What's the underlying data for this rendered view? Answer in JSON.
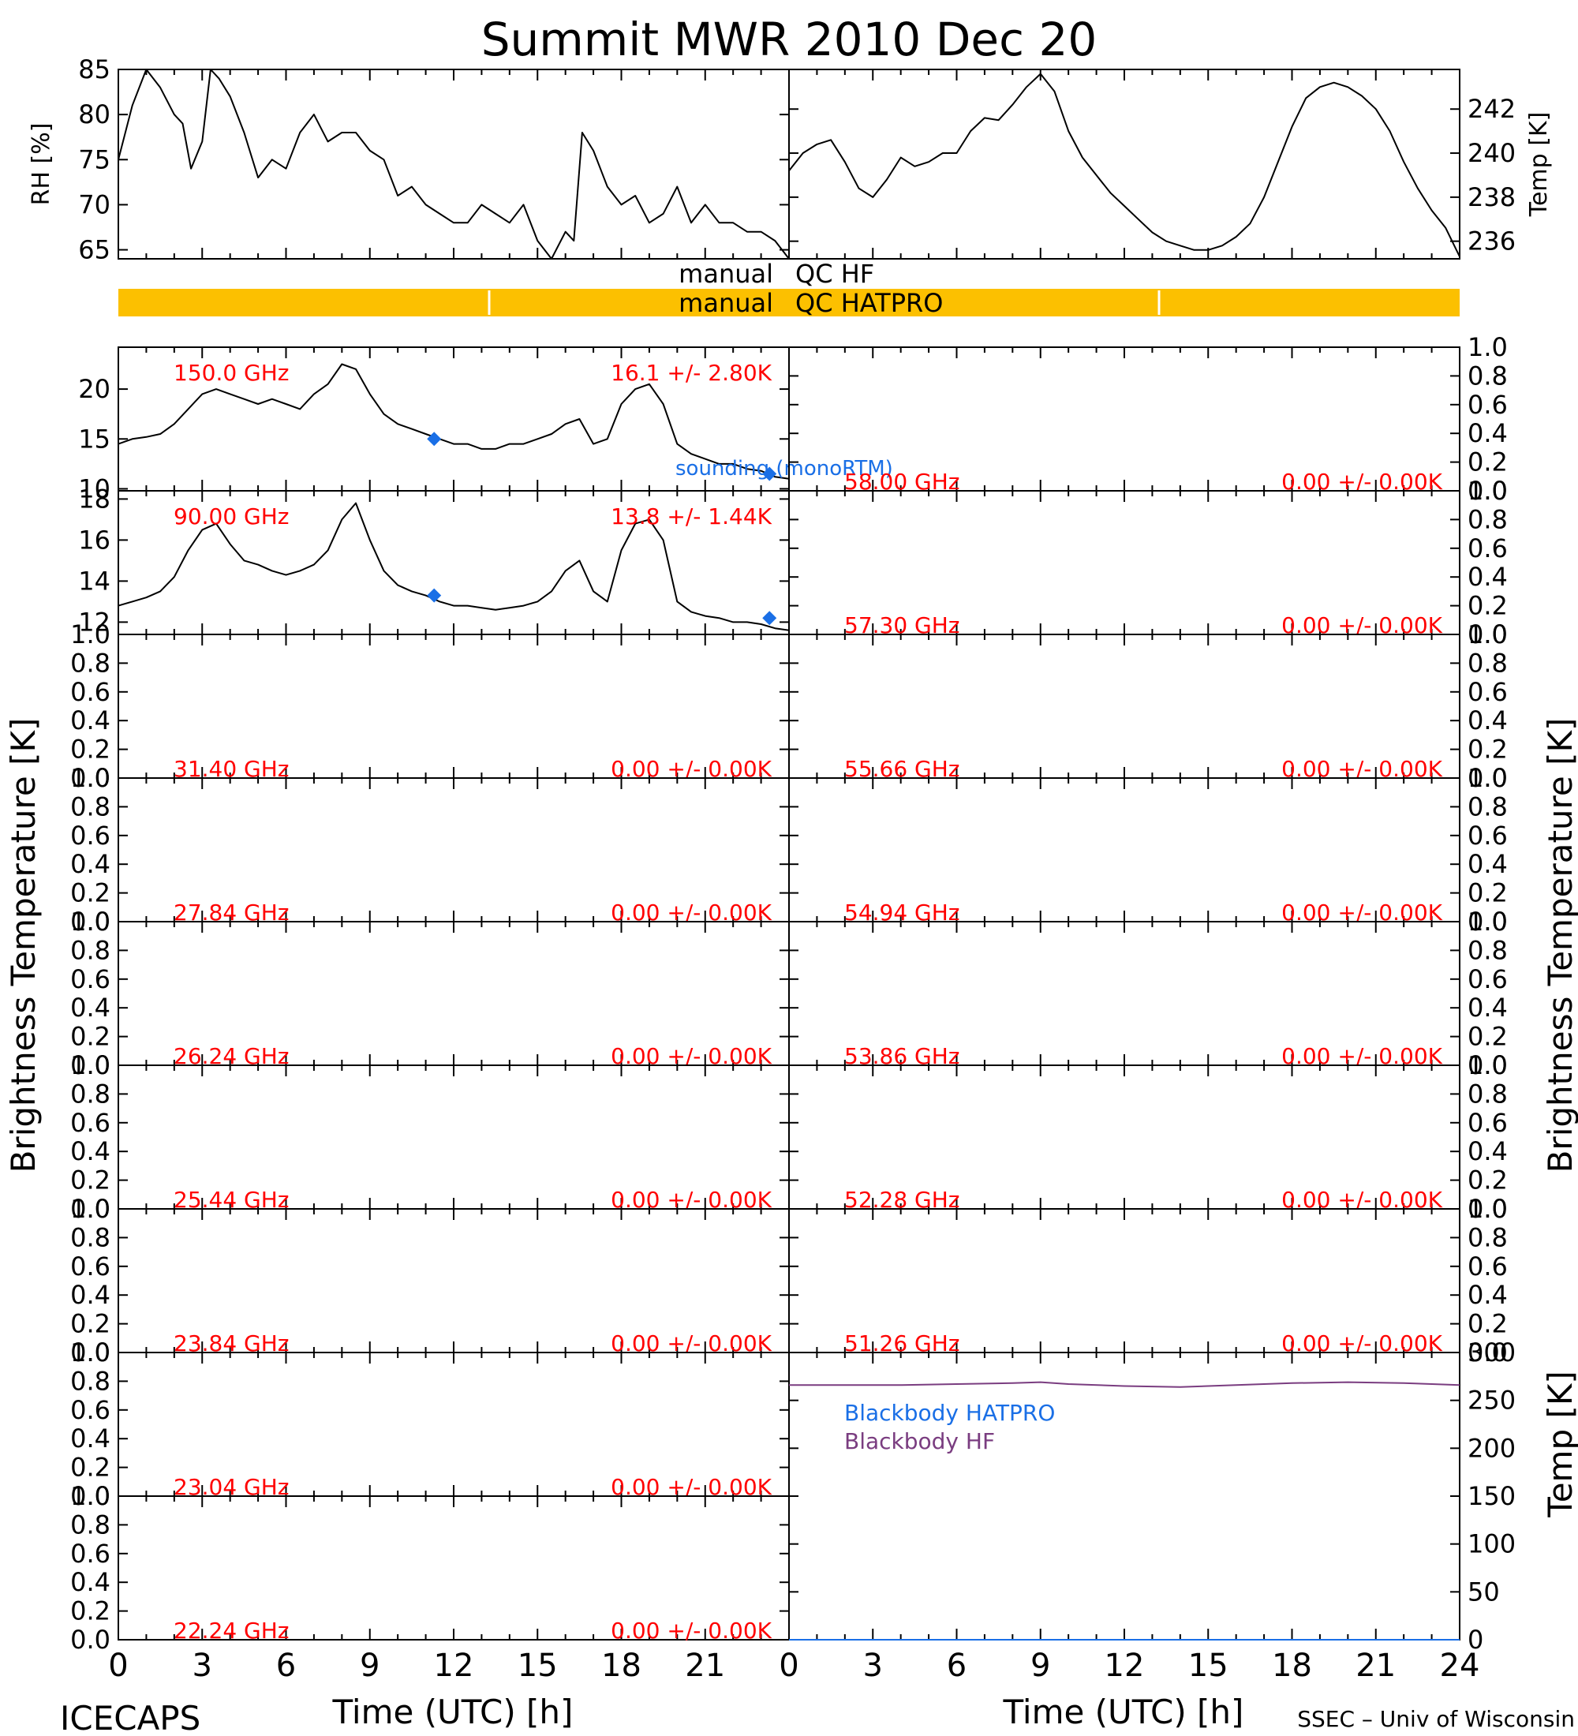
{
  "title": "Summit MWR 2010 Dec 20",
  "footer": {
    "left": "ICECAPS",
    "right": "SSEC – Univ of Wisconsin",
    "xlabel_left": "Time (UTC) [h]",
    "xlabel_right": "Time (UTC) [h]"
  },
  "side_labels": {
    "left": "Brightness Temperature [K]",
    "right": "Brightness Temperature [K]",
    "bb_right": "Temp [K]"
  },
  "colors": {
    "axis": "#000000",
    "freq_label": "#ff0000",
    "sounding": "#1a6fe6",
    "qc_bar": "#fcc000",
    "bb_hf": "#7a3d80",
    "bb_hatpro": "#1a6fe6"
  },
  "qc": {
    "hf_label_left": "manual",
    "hf_label_right": "QC HF",
    "hatpro_label_left": "manual",
    "hatpro_label_right": "QC HATPRO"
  },
  "chart_data": [
    {
      "id": "rh",
      "type": "line",
      "ylabel": "RH [%]",
      "xlim": [
        0,
        24
      ],
      "ylim": [
        64,
        85
      ],
      "yticks": [
        65,
        70,
        75,
        80,
        85
      ],
      "x": [
        0,
        0.5,
        1,
        1.5,
        2,
        2.3,
        2.6,
        3,
        3.3,
        3.6,
        4,
        4.5,
        5,
        5.5,
        6,
        6.5,
        7,
        7.5,
        8,
        8.5,
        9,
        9.5,
        10,
        10.5,
        11,
        11.5,
        12,
        12.5,
        13,
        13.5,
        14,
        14.5,
        15,
        15.5,
        16,
        16.3,
        16.6,
        17,
        17.5,
        18,
        18.5,
        19,
        19.5,
        20,
        20.5,
        21,
        21.5,
        22,
        22.5,
        23,
        23.5,
        24
      ],
      "y": [
        75,
        81,
        85,
        83,
        80,
        79,
        74,
        77,
        85,
        84,
        82,
        78,
        73,
        75,
        74,
        78,
        80,
        77,
        78,
        78,
        76,
        75,
        71,
        72,
        70,
        69,
        68,
        68,
        70,
        69,
        68,
        70,
        66,
        64,
        67,
        66,
        78,
        76,
        72,
        70,
        71,
        68,
        69,
        72,
        68,
        70,
        68,
        68,
        67,
        67,
        66,
        64
      ]
    },
    {
      "id": "temp",
      "type": "line",
      "ylabel": "Temp [K]",
      "xlim": [
        0,
        24
      ],
      "ylim": [
        235.2,
        243.8
      ],
      "yticks": [
        236,
        238,
        240,
        242
      ],
      "x": [
        0,
        0.5,
        1,
        1.5,
        2,
        2.5,
        3,
        3.5,
        4,
        4.5,
        5,
        5.5,
        6,
        6.5,
        7,
        7.5,
        8,
        8.5,
        9,
        9.5,
        10,
        10.5,
        11,
        11.5,
        12,
        12.5,
        13,
        13.5,
        14,
        14.5,
        15,
        15.5,
        16,
        16.5,
        17,
        17.5,
        18,
        18.5,
        19,
        19.5,
        20,
        20.5,
        21,
        21.5,
        22,
        22.5,
        23,
        23.5,
        24
      ],
      "y": [
        239.2,
        240.0,
        240.4,
        240.6,
        239.6,
        238.4,
        238.0,
        238.8,
        239.8,
        239.4,
        239.6,
        240.0,
        240.0,
        241.0,
        241.6,
        241.5,
        242.2,
        243.0,
        243.6,
        242.8,
        241.0,
        239.8,
        239.0,
        238.2,
        237.6,
        237.0,
        236.4,
        236.0,
        235.8,
        235.6,
        235.6,
        235.8,
        236.2,
        236.8,
        238.0,
        239.6,
        241.2,
        242.5,
        243.0,
        243.2,
        243.0,
        242.6,
        242.0,
        241.0,
        239.6,
        238.4,
        237.4,
        236.6,
        235.3
      ]
    },
    {
      "id": "bt150",
      "type": "line",
      "column": "left",
      "freq_label": "150.0 GHz",
      "stat_label": "16.1 +/-  2.80K",
      "ylim": [
        9.8,
        24.2
      ],
      "yticks": [
        10,
        15,
        20
      ],
      "x": [
        0,
        0.5,
        1,
        1.5,
        2,
        2.5,
        3,
        3.5,
        4,
        4.5,
        5,
        5.5,
        6,
        6.5,
        7,
        7.5,
        8,
        8.5,
        9,
        9.5,
        10,
        10.5,
        11,
        11.5,
        12,
        12.5,
        13,
        13.5,
        14,
        14.5,
        15,
        15.5,
        16,
        16.5,
        17,
        17.5,
        18,
        18.5,
        19,
        19.5,
        20,
        20.5,
        21,
        21.5,
        22,
        22.5,
        23,
        23.5,
        24
      ],
      "y": [
        14.5,
        15.0,
        15.2,
        15.5,
        16.5,
        18.0,
        19.5,
        20.0,
        19.5,
        19.0,
        18.5,
        19.0,
        18.5,
        18.0,
        19.5,
        20.5,
        22.5,
        22.0,
        19.5,
        17.5,
        16.5,
        16.0,
        15.5,
        15.0,
        14.5,
        14.5,
        14.0,
        14.0,
        14.5,
        14.5,
        15.0,
        15.5,
        16.5,
        17.0,
        14.5,
        15.0,
        18.5,
        20.0,
        20.5,
        18.5,
        14.5,
        13.5,
        13.0,
        12.5,
        12.5,
        12.0,
        11.8,
        11.2,
        11.0
      ],
      "sounding": {
        "label": "sounding (monoRTM)",
        "x": [
          11.3,
          23.3
        ],
        "y": [
          15.0,
          11.5
        ]
      }
    },
    {
      "id": "bt90",
      "type": "line",
      "column": "left",
      "freq_label": "90.00 GHz",
      "stat_label": "13.8 +/-  1.44K",
      "ylim": [
        11.4,
        18.4
      ],
      "yticks": [
        12,
        14,
        16,
        18
      ],
      "x": [
        0,
        0.5,
        1,
        1.5,
        2,
        2.5,
        3,
        3.5,
        4,
        4.5,
        5,
        5.5,
        6,
        6.5,
        7,
        7.5,
        8,
        8.5,
        9,
        9.5,
        10,
        10.5,
        11,
        11.5,
        12,
        12.5,
        13,
        13.5,
        14,
        14.5,
        15,
        15.5,
        16,
        16.5,
        17,
        17.5,
        18,
        18.5,
        19,
        19.5,
        20,
        20.5,
        21,
        21.5,
        22,
        22.5,
        23,
        23.5,
        24
      ],
      "y": [
        12.8,
        13.0,
        13.2,
        13.5,
        14.2,
        15.5,
        16.5,
        16.8,
        15.8,
        15.0,
        14.8,
        14.5,
        14.3,
        14.5,
        14.8,
        15.5,
        17.0,
        17.8,
        16.0,
        14.5,
        13.8,
        13.5,
        13.3,
        13.0,
        12.8,
        12.8,
        12.7,
        12.6,
        12.7,
        12.8,
        13.0,
        13.5,
        14.5,
        15.0,
        13.5,
        13.0,
        15.5,
        16.8,
        17.0,
        16.0,
        13.0,
        12.5,
        12.3,
        12.2,
        12.0,
        12.0,
        11.9,
        11.7,
        11.6
      ],
      "sounding": {
        "label": "",
        "x": [
          11.3,
          23.3
        ],
        "y": [
          13.3,
          12.2
        ]
      }
    },
    {
      "id": "bt31",
      "type": "line",
      "column": "left",
      "freq_label": "31.40 GHz",
      "stat_label": "0.00 +/-  0.00K",
      "ylim": [
        0,
        1
      ],
      "yticks": [
        0.0,
        0.2,
        0.4,
        0.6,
        0.8,
        1.0
      ],
      "x": [],
      "y": []
    },
    {
      "id": "bt27",
      "type": "line",
      "column": "left",
      "freq_label": "27.84 GHz",
      "stat_label": "0.00 +/-  0.00K",
      "ylim": [
        0,
        1
      ],
      "yticks": [
        0.0,
        0.2,
        0.4,
        0.6,
        0.8,
        1.0
      ],
      "x": [],
      "y": []
    },
    {
      "id": "bt26",
      "type": "line",
      "column": "left",
      "freq_label": "26.24 GHz",
      "stat_label": "0.00 +/-  0.00K",
      "ylim": [
        0,
        1
      ],
      "yticks": [
        0.0,
        0.2,
        0.4,
        0.6,
        0.8,
        1.0
      ],
      "x": [],
      "y": []
    },
    {
      "id": "bt25",
      "type": "line",
      "column": "left",
      "freq_label": "25.44 GHz",
      "stat_label": "0.00 +/-  0.00K",
      "ylim": [
        0,
        1
      ],
      "yticks": [
        0.0,
        0.2,
        0.4,
        0.6,
        0.8,
        1.0
      ],
      "x": [],
      "y": []
    },
    {
      "id": "bt2384",
      "type": "line",
      "column": "left",
      "freq_label": "23.84 GHz",
      "stat_label": "0.00 +/-  0.00K",
      "ylim": [
        0,
        1
      ],
      "yticks": [
        0.0,
        0.2,
        0.4,
        0.6,
        0.8,
        1.0
      ],
      "x": [],
      "y": []
    },
    {
      "id": "bt2304",
      "type": "line",
      "column": "left",
      "freq_label": "23.04 GHz",
      "stat_label": "0.00 +/-  0.00K",
      "ylim": [
        0,
        1
      ],
      "yticks": [
        0.0,
        0.2,
        0.4,
        0.6,
        0.8,
        1.0
      ],
      "x": [],
      "y": []
    },
    {
      "id": "bt2224",
      "type": "line",
      "column": "left",
      "freq_label": "22.24 GHz",
      "stat_label": "0.00 +/-  0.00K",
      "ylim": [
        0,
        1
      ],
      "yticks": [
        0.0,
        0.2,
        0.4,
        0.6,
        0.8,
        1.0
      ],
      "x": [],
      "y": []
    },
    {
      "id": "bt58",
      "type": "line",
      "column": "right",
      "freq_label": "58.00 GHz",
      "stat_label": "0.00 +/-  0.00K",
      "ylim": [
        0,
        1
      ],
      "yticks": [
        0.0,
        0.2,
        0.4,
        0.6,
        0.8,
        1.0
      ],
      "x": [],
      "y": []
    },
    {
      "id": "bt5730",
      "type": "line",
      "column": "right",
      "freq_label": "57.30 GHz",
      "stat_label": "0.00 +/-  0.00K",
      "ylim": [
        0,
        1
      ],
      "yticks": [
        0.0,
        0.2,
        0.4,
        0.6,
        0.8,
        1.0
      ],
      "x": [],
      "y": []
    },
    {
      "id": "bt5566",
      "type": "line",
      "column": "right",
      "freq_label": "55.66 GHz",
      "stat_label": "0.00 +/-  0.00K",
      "ylim": [
        0,
        1
      ],
      "yticks": [
        0.0,
        0.2,
        0.4,
        0.6,
        0.8,
        1.0
      ],
      "x": [],
      "y": []
    },
    {
      "id": "bt5494",
      "type": "line",
      "column": "right",
      "freq_label": "54.94 GHz",
      "stat_label": "0.00 +/-  0.00K",
      "ylim": [
        0,
        1
      ],
      "yticks": [
        0.0,
        0.2,
        0.4,
        0.6,
        0.8,
        1.0
      ],
      "x": [],
      "y": []
    },
    {
      "id": "bt5386",
      "type": "line",
      "column": "right",
      "freq_label": "53.86 GHz",
      "stat_label": "0.00 +/-  0.00K",
      "ylim": [
        0,
        1
      ],
      "yticks": [
        0.0,
        0.2,
        0.4,
        0.6,
        0.8,
        1.0
      ],
      "x": [],
      "y": []
    },
    {
      "id": "bt5228",
      "type": "line",
      "column": "right",
      "freq_label": "52.28 GHz",
      "stat_label": "0.00 +/-  0.00K",
      "ylim": [
        0,
        1
      ],
      "yticks": [
        0.0,
        0.2,
        0.4,
        0.6,
        0.8,
        1.0
      ],
      "x": [],
      "y": []
    },
    {
      "id": "bt5126",
      "type": "line",
      "column": "right",
      "freq_label": "51.26 GHz",
      "stat_label": "0.00 +/-  0.00K",
      "ylim": [
        0,
        1
      ],
      "yticks": [
        0.0,
        0.2,
        0.4,
        0.6,
        0.8,
        1.0
      ],
      "x": [],
      "y": []
    },
    {
      "id": "blackbody",
      "type": "line",
      "column": "right",
      "ylabel": "Temp [K]",
      "ylim": [
        0,
        300
      ],
      "yticks": [
        0,
        50,
        100,
        150,
        200,
        250,
        300
      ],
      "x": [
        0,
        2,
        4,
        6,
        8,
        9,
        10,
        12,
        14,
        16,
        18,
        20,
        22,
        24
      ],
      "series": [
        {
          "name": "Blackbody HF",
          "values": [
            266,
            266,
            266,
            267,
            268,
            269,
            267,
            265,
            264,
            266,
            268,
            269,
            268,
            266
          ]
        },
        {
          "name": "Blackbody HATPRO",
          "values": [
            0,
            0,
            0,
            0,
            0,
            0,
            0,
            0,
            0,
            0,
            0,
            0,
            0,
            0
          ]
        }
      ]
    }
  ],
  "xaxis": {
    "ticks": [
      0,
      3,
      6,
      9,
      12,
      15,
      18,
      21,
      24
    ],
    "left_tick_labels": [
      "0",
      "3",
      "6",
      "9",
      "12",
      "15",
      "18",
      "21"
    ],
    "right_tick_labels": [
      "0",
      "3",
      "6",
      "9",
      "12",
      "15",
      "18",
      "21",
      "24"
    ]
  }
}
